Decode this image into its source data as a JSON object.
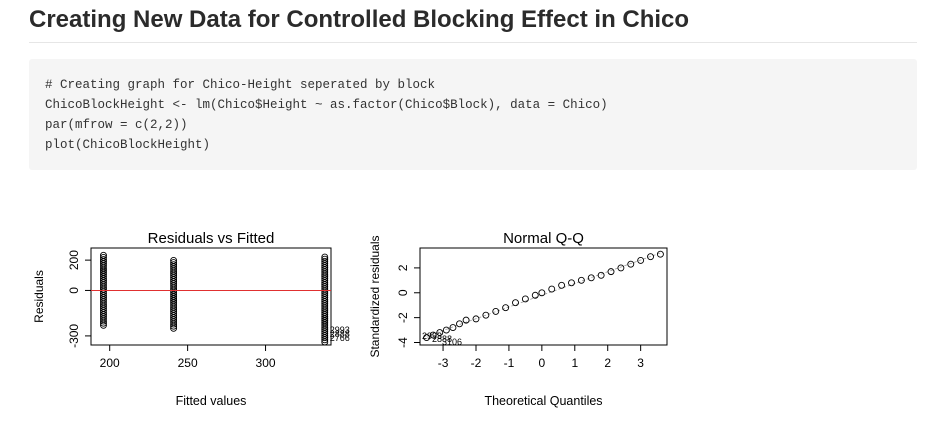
{
  "page": {
    "title": "Creating New Data for Controlled Blocking Effect in Chico"
  },
  "code_block": {
    "lines": [
      "# Creating graph for Chico-Height seperated by block",
      "ChicoBlockHeight <- lm(Chico$Height ~ as.factor(Chico$Block), data = Chico)",
      "par(mfrow = c(2,2))",
      "plot(ChicoBlockHeight)"
    ]
  },
  "chart_data": [
    {
      "type": "scatter",
      "title": "Residuals vs Fitted",
      "xlabel": "Fitted values",
      "ylabel": "Residuals",
      "xticks": [
        200,
        250,
        300
      ],
      "yticks": [
        -300,
        0,
        200
      ],
      "xlim": [
        188,
        342
      ],
      "ylim": [
        -360,
        280
      ],
      "groups": [
        {
          "x": 196,
          "ymin": -230,
          "ymax": 240
        },
        {
          "x": 241,
          "ymin": -250,
          "ymax": 200
        },
        {
          "x": 338,
          "ymin": -340,
          "ymax": 220
        }
      ],
      "reference_line": {
        "y": 0,
        "color": "#e03030"
      },
      "point_labels": [
        "2993",
        "2888",
        "2766"
      ]
    },
    {
      "type": "scatter",
      "title": "Normal Q-Q",
      "xlabel": "Theoretical Quantiles",
      "ylabel": "Standardized residuals",
      "xticks": [
        -3,
        -2,
        -1,
        0,
        1,
        2,
        3
      ],
      "yticks": [
        -4,
        -2,
        0,
        2
      ],
      "xlim": [
        -3.7,
        3.8
      ],
      "ylim": [
        -4.2,
        3.6
      ],
      "qq_points": [
        [
          -3.5,
          -3.6
        ],
        [
          -3.3,
          -3.4
        ],
        [
          -3.1,
          -3.2
        ],
        [
          -2.9,
          -3.0
        ],
        [
          -2.7,
          -2.8
        ],
        [
          -2.5,
          -2.5
        ],
        [
          -2.3,
          -2.2
        ],
        [
          -2.0,
          -2.1
        ],
        [
          -1.7,
          -1.8
        ],
        [
          -1.4,
          -1.5
        ],
        [
          -1.1,
          -1.2
        ],
        [
          -0.8,
          -0.8
        ],
        [
          -0.5,
          -0.5
        ],
        [
          -0.2,
          -0.2
        ],
        [
          0.0,
          0.0
        ],
        [
          0.3,
          0.3
        ],
        [
          0.6,
          0.6
        ],
        [
          0.9,
          0.8
        ],
        [
          1.2,
          1.0
        ],
        [
          1.5,
          1.2
        ],
        [
          1.8,
          1.4
        ],
        [
          2.1,
          1.7
        ],
        [
          2.4,
          2.0
        ],
        [
          2.7,
          2.3
        ],
        [
          3.0,
          2.6
        ],
        [
          3.3,
          2.9
        ],
        [
          3.6,
          3.1
        ]
      ],
      "point_labels": [
        "2993",
        "2888",
        "3106"
      ]
    }
  ]
}
